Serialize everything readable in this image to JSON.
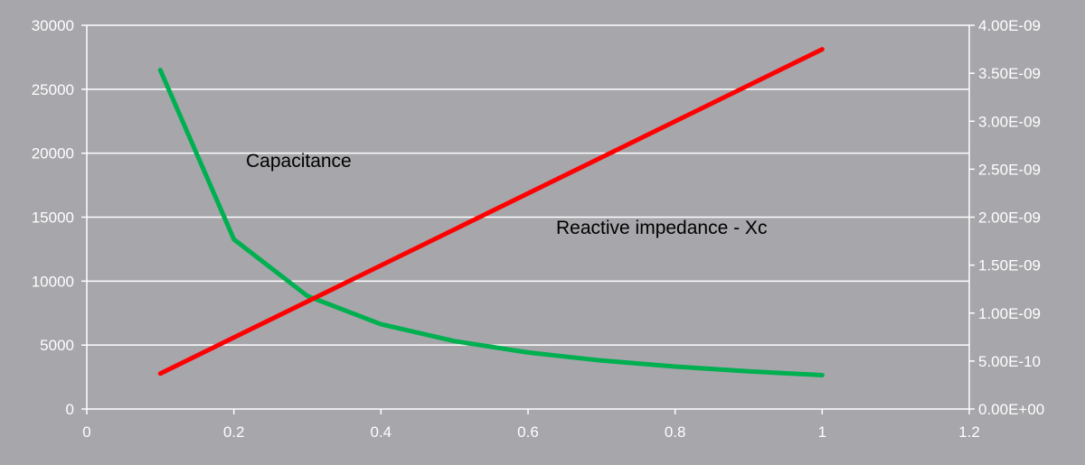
{
  "chart_data": {
    "type": "line",
    "title": "",
    "xlabel": "",
    "ylabel": "",
    "y2label": "",
    "xlim": [
      0,
      1.2
    ],
    "ylim": [
      0,
      30000
    ],
    "y2lim": [
      0,
      4e-09
    ],
    "x_ticks": [
      0,
      0.2,
      0.4,
      0.6,
      0.8,
      1,
      1.2
    ],
    "x_tick_labels": [
      "0",
      "0.2",
      "0.4",
      "0.6",
      "0.8",
      "1",
      "1.2"
    ],
    "y_ticks": [
      0,
      5000,
      10000,
      15000,
      20000,
      25000,
      30000
    ],
    "y_tick_labels": [
      "0",
      "5000",
      "10000",
      "15000",
      "20000",
      "25000",
      "30000"
    ],
    "y2_ticks": [
      0,
      5e-10,
      1e-09,
      1.5e-09,
      2e-09,
      2.5e-09,
      3e-09,
      3.5e-09,
      4e-09
    ],
    "y2_tick_labels": [
      "0.00E+00",
      "5.00E-10",
      "1.00E-09",
      "1.50E-09",
      "2.00E-09",
      "2.50E-09",
      "3.00E-09",
      "3.50E-09",
      "4.00E-09"
    ],
    "grid": "horizontal",
    "annotations": {
      "capacitance": "Capacitance",
      "reactive": "Reactive impedance  - Xc"
    },
    "series": [
      {
        "axis": "left",
        "color": "#00b050",
        "x": [
          0.1,
          0.2,
          0.3,
          0.4,
          0.5,
          0.6,
          0.7,
          0.8,
          0.9,
          1.0
        ],
        "values": [
          26500,
          13260,
          8840,
          6630,
          5305,
          4420,
          3790,
          3315,
          2950,
          2650
        ]
      },
      {
        "axis": "right",
        "color": "#ff0000",
        "x": [
          0.1,
          1.0
        ],
        "values": [
          3.7e-10,
          3.75e-09
        ]
      }
    ],
    "colors": {
      "background": "#a6a6ab",
      "grid": "#ffffff",
      "ticks": "#ffffff"
    }
  }
}
